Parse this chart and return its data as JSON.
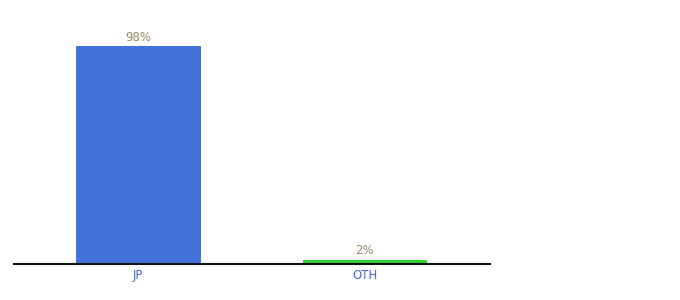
{
  "categories": [
    "JP",
    "OTH"
  ],
  "values": [
    98,
    2
  ],
  "bar_colors": [
    "#4472db",
    "#33cc33"
  ],
  "label_color": "#998866",
  "background_color": "#ffffff",
  "ylim": [
    0,
    108
  ],
  "bar_width": 0.55,
  "label_fontsize": 8.5,
  "tick_fontsize": 8.5,
  "axline_color": "#111111",
  "tick_color": "#4466cc"
}
